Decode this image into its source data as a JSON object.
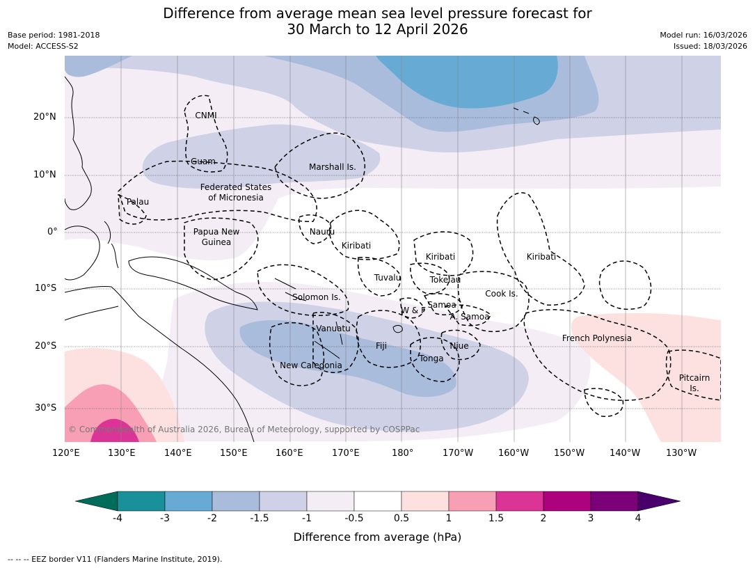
{
  "title_line1": "Difference from average mean sea level pressure forecast for",
  "title_line2": "30 March to 12 April 2026",
  "base_period": "Base period: 1981-2018",
  "model": "Model: ACCESS-S2",
  "model_run": "Model run: 16/03/2026",
  "issued": "Issued: 18/03/2026",
  "copyright": "© Commonwealth of Australia 2026, Bureau of Meteorology, supported by COSPPac",
  "lat_labels": [
    "20°N",
    "10°N",
    "0°",
    "10°S",
    "20°S",
    "30°S"
  ],
  "lon_labels": [
    "120°E",
    "130°E",
    "140°E",
    "150°E",
    "160°E",
    "170°E",
    "180°",
    "170°W",
    "160°W",
    "150°W",
    "140°W",
    "130°W"
  ],
  "places": {
    "cnmi": "CNMI",
    "guam": "Guam",
    "marshall": "Marshall Is.",
    "fsm1": "Federated States",
    "fsm2": "of Micronesia",
    "palau": "Palau",
    "png1": "Papua New",
    "png2": "Guinea",
    "nauru": "Nauru",
    "kiribati_w": "Kiribati",
    "kiribati_c": "Kiribati",
    "kiribati_e": "Kiribati",
    "tuvalu": "Tuvalu",
    "tokelau": "Tokelau",
    "solomon": "Solomon Is.",
    "cook": "Cook Is.",
    "samoa": "Samoa",
    "wf": "W & F",
    "asamoa": "A. Samoa",
    "vanuatu": "Vanuatu",
    "fiji": "Fiji",
    "niue": "Niue",
    "tonga": "Tonga",
    "newcal": "New Caledonia",
    "frpoly": "French Polynesia",
    "pitcairn1": "Pitcairn",
    "pitcairn2": "Is."
  },
  "colorbar": {
    "ticks": [
      "-4",
      "-3",
      "-2",
      "-1.5",
      "-1",
      "-0.5",
      "0.5",
      "1",
      "1.5",
      "2",
      "3",
      "4"
    ],
    "colors": [
      "#1a9098",
      "#67aad3",
      "#a9bcdb",
      "#cfd1e6",
      "#f4edf6",
      "#ffffff",
      "#fde0e0",
      "#f89fb5",
      "#db3496",
      "#ae017e",
      "#7a0177"
    ],
    "under_color": "#016c59",
    "over_color": "#49006a",
    "label": "Difference from average (hPa)"
  },
  "footer": "--  --  -- EEZ border V11 (Flanders Marine Institute, 2019)."
}
